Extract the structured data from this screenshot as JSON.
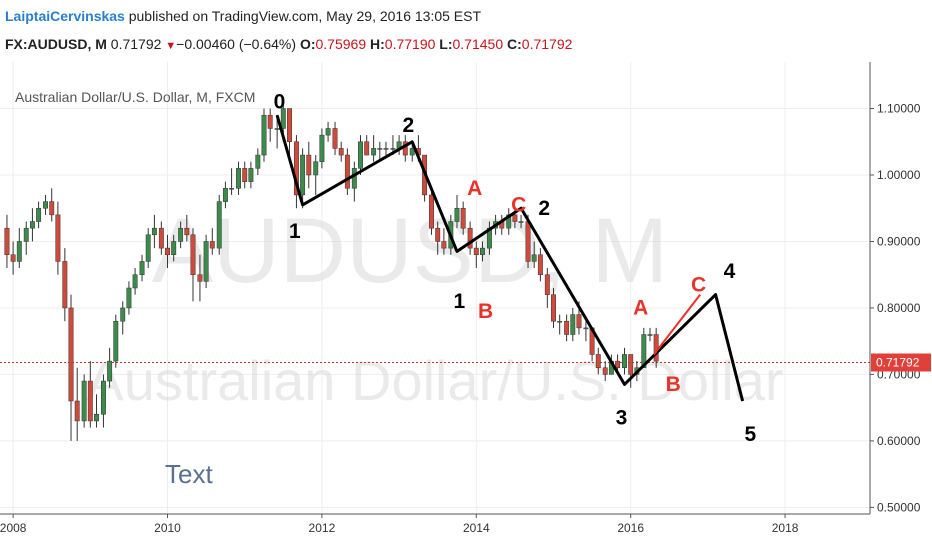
{
  "header": {
    "author": "LaiptaiCervinskas",
    "published": "published on TradingView.com, May 29, 2016 13:05 EST",
    "symbol": "FX:AUDUSD, M",
    "last": "0.71792",
    "change": "−0.00460 (−0.64%)",
    "open_label": "O:",
    "open": "0.75969",
    "high_label": "H:",
    "high": "0.77190",
    "low_label": "L:",
    "low": "0.71450",
    "close_label": "C:",
    "close": "0.71792"
  },
  "chart_data": {
    "type": "candlestick",
    "title": "Australian Dollar/U.S. Dollar, M, FXCM",
    "watermark_symbol": "AUDUSD, M",
    "watermark_name": "Australian Dollar/U.S. Dollar",
    "y_ticks": [
      "1.10000",
      "1.00000",
      "0.90000",
      "0.80000",
      "0.70000",
      "0.60000",
      "0.50000"
    ],
    "y_tick_values": [
      1.1,
      1.0,
      0.9,
      0.8,
      0.7,
      0.6,
      0.5
    ],
    "ylim": [
      0.49,
      1.17
    ],
    "x_ticks": [
      "2008",
      "2010",
      "2012",
      "2014",
      "2016",
      "2018"
    ],
    "x_tick_values": [
      2008,
      2010,
      2012,
      2014,
      2016,
      2018
    ],
    "xlim": [
      2007.83,
      2019.1
    ],
    "last_price": 0.71792,
    "last_price_label": "0.71792",
    "up_color": "#3c8a4c",
    "down_color": "#d04a3c",
    "candles": [
      {
        "t": 2007.92,
        "o": 0.92,
        "h": 0.94,
        "l": 0.86,
        "c": 0.88
      },
      {
        "t": 2008.0,
        "o": 0.88,
        "h": 0.9,
        "l": 0.85,
        "c": 0.87
      },
      {
        "t": 2008.08,
        "o": 0.87,
        "h": 0.92,
        "l": 0.86,
        "c": 0.9
      },
      {
        "t": 2008.17,
        "o": 0.9,
        "h": 0.93,
        "l": 0.88,
        "c": 0.92
      },
      {
        "t": 2008.25,
        "o": 0.92,
        "h": 0.95,
        "l": 0.9,
        "c": 0.93
      },
      {
        "t": 2008.33,
        "o": 0.93,
        "h": 0.96,
        "l": 0.92,
        "c": 0.95
      },
      {
        "t": 2008.42,
        "o": 0.95,
        "h": 0.97,
        "l": 0.94,
        "c": 0.96
      },
      {
        "t": 2008.5,
        "o": 0.96,
        "h": 0.98,
        "l": 0.93,
        "c": 0.94
      },
      {
        "t": 2008.58,
        "o": 0.94,
        "h": 0.96,
        "l": 0.85,
        "c": 0.87
      },
      {
        "t": 2008.67,
        "o": 0.87,
        "h": 0.89,
        "l": 0.78,
        "c": 0.8
      },
      {
        "t": 2008.75,
        "o": 0.8,
        "h": 0.82,
        "l": 0.6,
        "c": 0.66
      },
      {
        "t": 2008.83,
        "o": 0.66,
        "h": 0.71,
        "l": 0.6,
        "c": 0.63
      },
      {
        "t": 2008.92,
        "o": 0.63,
        "h": 0.7,
        "l": 0.62,
        "c": 0.69
      },
      {
        "t": 2009.0,
        "o": 0.69,
        "h": 0.72,
        "l": 0.62,
        "c": 0.63
      },
      {
        "t": 2009.08,
        "o": 0.63,
        "h": 0.67,
        "l": 0.62,
        "c": 0.64
      },
      {
        "t": 2009.17,
        "o": 0.64,
        "h": 0.7,
        "l": 0.62,
        "c": 0.69
      },
      {
        "t": 2009.25,
        "o": 0.69,
        "h": 0.74,
        "l": 0.68,
        "c": 0.72
      },
      {
        "t": 2009.33,
        "o": 0.72,
        "h": 0.79,
        "l": 0.71,
        "c": 0.78
      },
      {
        "t": 2009.42,
        "o": 0.78,
        "h": 0.81,
        "l": 0.76,
        "c": 0.8
      },
      {
        "t": 2009.5,
        "o": 0.8,
        "h": 0.84,
        "l": 0.79,
        "c": 0.83
      },
      {
        "t": 2009.58,
        "o": 0.83,
        "h": 0.86,
        "l": 0.82,
        "c": 0.85
      },
      {
        "t": 2009.67,
        "o": 0.85,
        "h": 0.88,
        "l": 0.84,
        "c": 0.87
      },
      {
        "t": 2009.75,
        "o": 0.87,
        "h": 0.92,
        "l": 0.86,
        "c": 0.91
      },
      {
        "t": 2009.83,
        "o": 0.91,
        "h": 0.94,
        "l": 0.89,
        "c": 0.92
      },
      {
        "t": 2009.92,
        "o": 0.92,
        "h": 0.93,
        "l": 0.88,
        "c": 0.89
      },
      {
        "t": 2010.0,
        "o": 0.89,
        "h": 0.91,
        "l": 0.86,
        "c": 0.88
      },
      {
        "t": 2010.08,
        "o": 0.88,
        "h": 0.91,
        "l": 0.87,
        "c": 0.9
      },
      {
        "t": 2010.17,
        "o": 0.9,
        "h": 0.93,
        "l": 0.89,
        "c": 0.92
      },
      {
        "t": 2010.25,
        "o": 0.92,
        "h": 0.94,
        "l": 0.9,
        "c": 0.91
      },
      {
        "t": 2010.33,
        "o": 0.91,
        "h": 0.92,
        "l": 0.81,
        "c": 0.85
      },
      {
        "t": 2010.42,
        "o": 0.85,
        "h": 0.88,
        "l": 0.81,
        "c": 0.84
      },
      {
        "t": 2010.5,
        "o": 0.84,
        "h": 0.91,
        "l": 0.83,
        "c": 0.9
      },
      {
        "t": 2010.58,
        "o": 0.9,
        "h": 0.92,
        "l": 0.88,
        "c": 0.89
      },
      {
        "t": 2010.67,
        "o": 0.89,
        "h": 0.97,
        "l": 0.88,
        "c": 0.96
      },
      {
        "t": 2010.75,
        "o": 0.96,
        "h": 0.99,
        "l": 0.95,
        "c": 0.98
      },
      {
        "t": 2010.83,
        "o": 0.98,
        "h": 1.01,
        "l": 0.97,
        "c": 0.98
      },
      {
        "t": 2010.92,
        "o": 0.98,
        "h": 1.02,
        "l": 0.97,
        "c": 1.01
      },
      {
        "t": 2011.0,
        "o": 1.01,
        "h": 1.02,
        "l": 0.98,
        "c": 0.99
      },
      {
        "t": 2011.08,
        "o": 0.99,
        "h": 1.02,
        "l": 0.98,
        "c": 1.01
      },
      {
        "t": 2011.17,
        "o": 1.01,
        "h": 1.04,
        "l": 1.0,
        "c": 1.03
      },
      {
        "t": 2011.25,
        "o": 1.03,
        "h": 1.1,
        "l": 1.02,
        "c": 1.09
      },
      {
        "t": 2011.33,
        "o": 1.09,
        "h": 1.1,
        "l": 1.05,
        "c": 1.07
      },
      {
        "t": 2011.42,
        "o": 1.07,
        "h": 1.09,
        "l": 1.04,
        "c": 1.07
      },
      {
        "t": 2011.5,
        "o": 1.07,
        "h": 1.11,
        "l": 1.05,
        "c": 1.1
      },
      {
        "t": 2011.58,
        "o": 1.1,
        "h": 1.1,
        "l": 1.03,
        "c": 1.05
      },
      {
        "t": 2011.67,
        "o": 1.05,
        "h": 1.06,
        "l": 0.95,
        "c": 0.97
      },
      {
        "t": 2011.75,
        "o": 0.97,
        "h": 1.04,
        "l": 0.95,
        "c": 1.03
      },
      {
        "t": 2011.83,
        "o": 1.03,
        "h": 1.05,
        "l": 0.98,
        "c": 1.0
      },
      {
        "t": 2011.92,
        "o": 1.0,
        "h": 1.03,
        "l": 0.97,
        "c": 1.02
      },
      {
        "t": 2012.0,
        "o": 1.02,
        "h": 1.07,
        "l": 1.01,
        "c": 1.06
      },
      {
        "t": 2012.08,
        "o": 1.06,
        "h": 1.08,
        "l": 1.05,
        "c": 1.07
      },
      {
        "t": 2012.17,
        "o": 1.07,
        "h": 1.08,
        "l": 1.03,
        "c": 1.04
      },
      {
        "t": 2012.25,
        "o": 1.04,
        "h": 1.05,
        "l": 1.02,
        "c": 1.03
      },
      {
        "t": 2012.33,
        "o": 1.03,
        "h": 1.04,
        "l": 0.97,
        "c": 0.98
      },
      {
        "t": 2012.42,
        "o": 0.98,
        "h": 1.02,
        "l": 0.96,
        "c": 1.01
      },
      {
        "t": 2012.5,
        "o": 1.01,
        "h": 1.06,
        "l": 1.0,
        "c": 1.05
      },
      {
        "t": 2012.58,
        "o": 1.05,
        "h": 1.06,
        "l": 1.03,
        "c": 1.03
      },
      {
        "t": 2012.67,
        "o": 1.03,
        "h": 1.06,
        "l": 1.02,
        "c": 1.04
      },
      {
        "t": 2012.75,
        "o": 1.04,
        "h": 1.05,
        "l": 1.02,
        "c": 1.04
      },
      {
        "t": 2012.83,
        "o": 1.04,
        "h": 1.05,
        "l": 1.03,
        "c": 1.04
      },
      {
        "t": 2012.92,
        "o": 1.04,
        "h": 1.06,
        "l": 1.03,
        "c": 1.04
      },
      {
        "t": 2013.0,
        "o": 1.04,
        "h": 1.06,
        "l": 1.03,
        "c": 1.05
      },
      {
        "t": 2013.08,
        "o": 1.05,
        "h": 1.06,
        "l": 1.02,
        "c": 1.03
      },
      {
        "t": 2013.17,
        "o": 1.03,
        "h": 1.05,
        "l": 1.02,
        "c": 1.04
      },
      {
        "t": 2013.25,
        "o": 1.04,
        "h": 1.06,
        "l": 1.02,
        "c": 1.03
      },
      {
        "t": 2013.33,
        "o": 1.03,
        "h": 1.03,
        "l": 0.96,
        "c": 0.97
      },
      {
        "t": 2013.42,
        "o": 0.97,
        "h": 0.98,
        "l": 0.91,
        "c": 0.92
      },
      {
        "t": 2013.5,
        "o": 0.92,
        "h": 0.93,
        "l": 0.88,
        "c": 0.9
      },
      {
        "t": 2013.58,
        "o": 0.9,
        "h": 0.92,
        "l": 0.88,
        "c": 0.89
      },
      {
        "t": 2013.67,
        "o": 0.89,
        "h": 0.94,
        "l": 0.88,
        "c": 0.93
      },
      {
        "t": 2013.75,
        "o": 0.93,
        "h": 0.97,
        "l": 0.92,
        "c": 0.95
      },
      {
        "t": 2013.83,
        "o": 0.95,
        "h": 0.96,
        "l": 0.91,
        "c": 0.92
      },
      {
        "t": 2013.92,
        "o": 0.92,
        "h": 0.93,
        "l": 0.88,
        "c": 0.89
      },
      {
        "t": 2014.0,
        "o": 0.89,
        "h": 0.9,
        "l": 0.86,
        "c": 0.88
      },
      {
        "t": 2014.08,
        "o": 0.88,
        "h": 0.9,
        "l": 0.87,
        "c": 0.89
      },
      {
        "t": 2014.17,
        "o": 0.89,
        "h": 0.93,
        "l": 0.88,
        "c": 0.92
      },
      {
        "t": 2014.25,
        "o": 0.92,
        "h": 0.94,
        "l": 0.91,
        "c": 0.93
      },
      {
        "t": 2014.33,
        "o": 0.93,
        "h": 0.94,
        "l": 0.91,
        "c": 0.92
      },
      {
        "t": 2014.42,
        "o": 0.92,
        "h": 0.95,
        "l": 0.91,
        "c": 0.94
      },
      {
        "t": 2014.5,
        "o": 0.94,
        "h": 0.95,
        "l": 0.92,
        "c": 0.93
      },
      {
        "t": 2014.58,
        "o": 0.93,
        "h": 0.94,
        "l": 0.92,
        "c": 0.93
      },
      {
        "t": 2014.67,
        "o": 0.93,
        "h": 0.94,
        "l": 0.86,
        "c": 0.87
      },
      {
        "t": 2014.75,
        "o": 0.87,
        "h": 0.9,
        "l": 0.86,
        "c": 0.88
      },
      {
        "t": 2014.83,
        "o": 0.88,
        "h": 0.89,
        "l": 0.84,
        "c": 0.85
      },
      {
        "t": 2014.92,
        "o": 0.85,
        "h": 0.86,
        "l": 0.8,
        "c": 0.82
      },
      {
        "t": 2015.0,
        "o": 0.82,
        "h": 0.83,
        "l": 0.77,
        "c": 0.78
      },
      {
        "t": 2015.08,
        "o": 0.78,
        "h": 0.79,
        "l": 0.76,
        "c": 0.78
      },
      {
        "t": 2015.17,
        "o": 0.78,
        "h": 0.79,
        "l": 0.75,
        "c": 0.76
      },
      {
        "t": 2015.25,
        "o": 0.76,
        "h": 0.8,
        "l": 0.75,
        "c": 0.79
      },
      {
        "t": 2015.33,
        "o": 0.79,
        "h": 0.81,
        "l": 0.76,
        "c": 0.77
      },
      {
        "t": 2015.42,
        "o": 0.77,
        "h": 0.78,
        "l": 0.75,
        "c": 0.77
      },
      {
        "t": 2015.5,
        "o": 0.77,
        "h": 0.77,
        "l": 0.72,
        "c": 0.73
      },
      {
        "t": 2015.58,
        "o": 0.73,
        "h": 0.74,
        "l": 0.7,
        "c": 0.71
      },
      {
        "t": 2015.67,
        "o": 0.71,
        "h": 0.72,
        "l": 0.69,
        "c": 0.7
      },
      {
        "t": 2015.75,
        "o": 0.7,
        "h": 0.73,
        "l": 0.7,
        "c": 0.72
      },
      {
        "t": 2015.83,
        "o": 0.72,
        "h": 0.73,
        "l": 0.7,
        "c": 0.71
      },
      {
        "t": 2015.92,
        "o": 0.71,
        "h": 0.74,
        "l": 0.7,
        "c": 0.73
      },
      {
        "t": 2016.0,
        "o": 0.73,
        "h": 0.73,
        "l": 0.68,
        "c": 0.7
      },
      {
        "t": 2016.08,
        "o": 0.7,
        "h": 0.72,
        "l": 0.69,
        "c": 0.71
      },
      {
        "t": 2016.17,
        "o": 0.71,
        "h": 0.77,
        "l": 0.71,
        "c": 0.76
      },
      {
        "t": 2016.25,
        "o": 0.76,
        "h": 0.77,
        "l": 0.75,
        "c": 0.76
      },
      {
        "t": 2016.33,
        "o": 0.76,
        "h": 0.77,
        "l": 0.71,
        "c": 0.72
      }
    ],
    "wave_lines": [
      {
        "color": "#000000",
        "points": [
          [
            2011.42,
            1.09
          ],
          [
            2011.75,
            0.955
          ],
          [
            2013.17,
            1.05
          ],
          [
            2013.75,
            0.885
          ],
          [
            2014.58,
            0.95
          ],
          [
            2015.92,
            0.685
          ],
          [
            2017.1,
            0.82
          ],
          [
            2017.45,
            0.66
          ]
        ]
      },
      {
        "color": "#e8322a",
        "points": [
          [
            2016.3,
            0.73
          ],
          [
            2016.9,
            0.82
          ]
        ]
      }
    ],
    "annotations": [
      {
        "text": "0",
        "x": 2011.45,
        "y": 1.1,
        "color": "#000000"
      },
      {
        "text": "1",
        "x": 2011.65,
        "y": 0.905,
        "color": "#000000"
      },
      {
        "text": "2",
        "x": 2013.12,
        "y": 1.065,
        "color": "#000000"
      },
      {
        "text": "A",
        "x": 2013.98,
        "y": 0.97,
        "color": "#e8322a"
      },
      {
        "text": "1",
        "x": 2013.78,
        "y": 0.8,
        "color": "#000000"
      },
      {
        "text": "B",
        "x": 2014.12,
        "y": 0.785,
        "color": "#e8322a"
      },
      {
        "text": "C",
        "x": 2014.55,
        "y": 0.945,
        "color": "#e8322a"
      },
      {
        "text": "2",
        "x": 2014.88,
        "y": 0.94,
        "color": "#000000"
      },
      {
        "text": "A",
        "x": 2016.13,
        "y": 0.79,
        "color": "#e8322a"
      },
      {
        "text": "C",
        "x": 2016.88,
        "y": 0.825,
        "color": "#e8322a"
      },
      {
        "text": "4",
        "x": 2017.28,
        "y": 0.845,
        "color": "#000000"
      },
      {
        "text": "B",
        "x": 2016.55,
        "y": 0.675,
        "color": "#e8322a"
      },
      {
        "text": "3",
        "x": 2015.88,
        "y": 0.625,
        "color": "#000000"
      },
      {
        "text": "5",
        "x": 2017.55,
        "y": 0.6,
        "color": "#000000"
      }
    ],
    "text_note": "Text"
  }
}
